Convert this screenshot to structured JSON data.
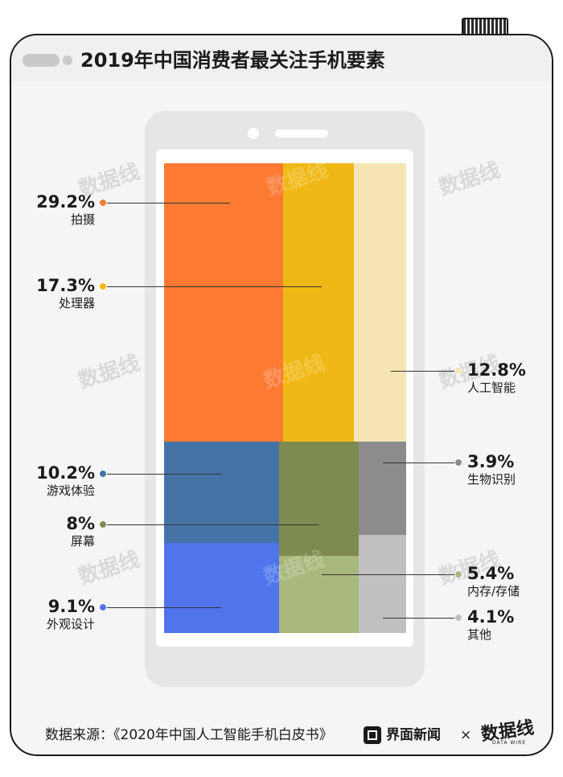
{
  "title": "2019年中国消费者最关注手机要素",
  "footer": {
    "source": "数据来源：《2020年中国人工智能手机白皮书》",
    "brand1": "界面新闻",
    "times": "×",
    "brand2": "数据线",
    "brand2_sub": "DATA WIRE"
  },
  "watermark": "数据线",
  "colors": {
    "拍摄": "#fd7a33",
    "处理器": "#f0b816",
    "人工智能": "#f6e4b4",
    "游戏体验": "#4573a6",
    "屏幕": "#7e8b50",
    "生物识别": "#8c8c8c",
    "外观设计": "#4f74ec",
    "内存/存储": "#a9b87d",
    "其他": "#c0c0c0"
  },
  "chart_data": {
    "type": "treemap",
    "title": "2019年中国消费者最关注手机要素",
    "items": [
      {
        "label": "拍摄",
        "value": 29.2,
        "value_label": "29.2%"
      },
      {
        "label": "处理器",
        "value": 17.3,
        "value_label": "17.3%"
      },
      {
        "label": "人工智能",
        "value": 12.8,
        "value_label": "12.8%"
      },
      {
        "label": "游戏体验",
        "value": 10.2,
        "value_label": "10.2%"
      },
      {
        "label": "外观设计",
        "value": 9.1,
        "value_label": "9.1%"
      },
      {
        "label": "屏幕",
        "value": 8,
        "value_label": "8%"
      },
      {
        "label": "内存/存储",
        "value": 5.4,
        "value_label": "5.4%"
      },
      {
        "label": "其他",
        "value": 4.1,
        "value_label": "4.1%"
      },
      {
        "label": "生物识别",
        "value": 3.9,
        "value_label": "3.9%"
      }
    ]
  }
}
